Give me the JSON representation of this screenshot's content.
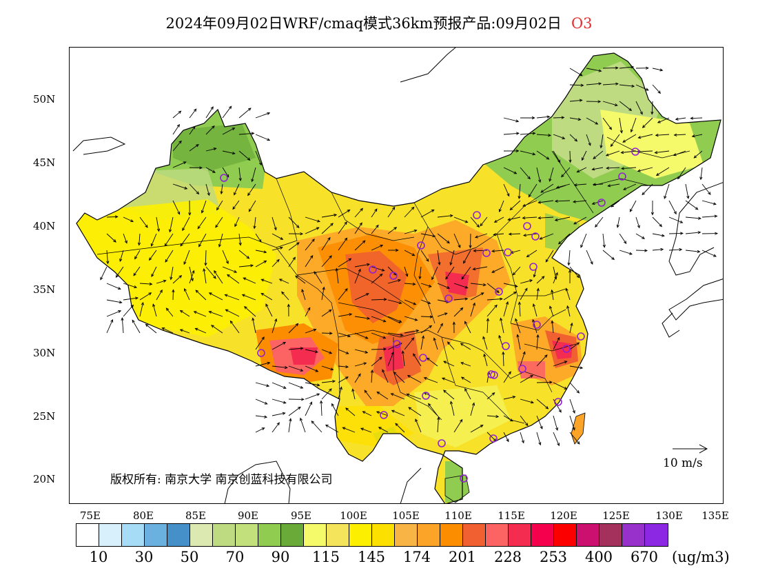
{
  "title": {
    "main": "2024年09月02日WRF/cmaq模式36km预报产品:09月02日",
    "pollutant": "O3"
  },
  "map": {
    "lat_ticks": [
      "50N",
      "45N",
      "40N",
      "35N",
      "30N",
      "25N",
      "20N"
    ],
    "lon_ticks": [
      "75E",
      "80E",
      "85E",
      "90E",
      "95E",
      "100E",
      "105E",
      "110E",
      "115E",
      "120E",
      "125E",
      "130E",
      "135E"
    ],
    "copyright": "版权所有: 南京大学 南京创蓝科技有限公司",
    "wind_legend": "10  m/s",
    "background_color": "#ffffff",
    "ocean_color": "#ffffff"
  },
  "colorbar": {
    "colors": [
      "#ffffff",
      "#d8f0fc",
      "#a6dcf6",
      "#6ab1e0",
      "#4590c8",
      "#dceab2",
      "#bedb82",
      "#c2e07c",
      "#90cc50",
      "#6aaa38",
      "#f4fa6a",
      "#f4e45c",
      "#fcf000",
      "#fce000",
      "#f8b444",
      "#fca428",
      "#fc8c00",
      "#f06030",
      "#fc6464",
      "#f42c50",
      "#f4004c",
      "#fc0000",
      "#cc1070",
      "#a4305c",
      "#9830cc",
      "#8c28e4"
    ],
    "labels": [
      "10",
      "30",
      "50",
      "70",
      "90",
      "115",
      "145",
      "174",
      "201",
      "228",
      "253",
      "400",
      "670"
    ],
    "unit": "(ug/m3)"
  },
  "cities": [
    {
      "name": "urumqi-marker"
    },
    {
      "name": "harbin-marker"
    },
    {
      "name": "changchun-marker"
    },
    {
      "name": "shenyang-marker"
    },
    {
      "name": "hohhot-marker"
    },
    {
      "name": "beijing-marker"
    },
    {
      "name": "tianjin-marker"
    },
    {
      "name": "shijiazhuang-marker"
    },
    {
      "name": "taiyuan-marker"
    },
    {
      "name": "jinan-marker"
    },
    {
      "name": "yinchuan-marker"
    },
    {
      "name": "xining-marker"
    },
    {
      "name": "lanzhou-marker"
    },
    {
      "name": "xian-marker"
    },
    {
      "name": "zhengzhou-marker"
    },
    {
      "name": "lhasa-marker"
    },
    {
      "name": "chengdu-marker"
    },
    {
      "name": "chongqing-marker"
    },
    {
      "name": "wuhan-marker"
    },
    {
      "name": "hefei-marker"
    },
    {
      "name": "nanjing-marker"
    },
    {
      "name": "shanghai-marker"
    },
    {
      "name": "hangzhou-marker"
    },
    {
      "name": "nanchang-marker"
    },
    {
      "name": "changsha-marker"
    },
    {
      "name": "fuzhou-marker"
    },
    {
      "name": "guiyang-marker"
    },
    {
      "name": "kunming-marker"
    },
    {
      "name": "nanning-marker"
    },
    {
      "name": "guangzhou-marker"
    },
    {
      "name": "haikou-marker"
    }
  ]
}
